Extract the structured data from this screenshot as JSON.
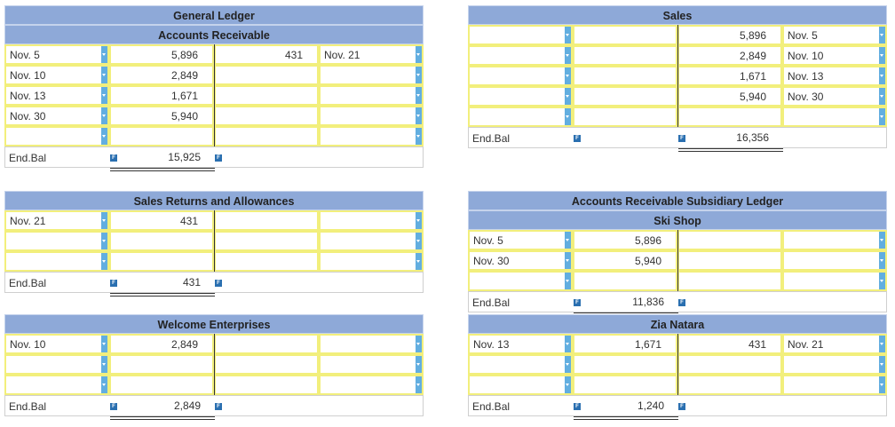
{
  "gl_title": "General Ledger",
  "end_bal_label": "End.Bal",
  "f_icon": "F",
  "accounts": {
    "ar": {
      "title": "Accounts Receivable",
      "rows": [
        {
          "ldate": "Nov. 5",
          "debit": "5,896",
          "credit": "431",
          "rdate": "Nov. 21"
        },
        {
          "ldate": "Nov. 10",
          "debit": "2,849",
          "credit": "",
          "rdate": ""
        },
        {
          "ldate": "Nov. 13",
          "debit": "1,671",
          "credit": "",
          "rdate": ""
        },
        {
          "ldate": "Nov. 30",
          "debit": "5,940",
          "credit": "",
          "rdate": ""
        },
        {
          "ldate": "",
          "debit": "",
          "credit": "",
          "rdate": ""
        }
      ],
      "end_debit": "15,925",
      "end_credit": ""
    },
    "sales": {
      "title": "Sales",
      "rows": [
        {
          "ldate": "",
          "debit": "",
          "credit": "5,896",
          "rdate": "Nov. 5"
        },
        {
          "ldate": "",
          "debit": "",
          "credit": "2,849",
          "rdate": "Nov. 10"
        },
        {
          "ldate": "",
          "debit": "",
          "credit": "1,671",
          "rdate": "Nov. 13"
        },
        {
          "ldate": "",
          "debit": "",
          "credit": "5,940",
          "rdate": "Nov. 30"
        },
        {
          "ldate": "",
          "debit": "",
          "credit": "",
          "rdate": ""
        }
      ],
      "end_debit": "",
      "end_credit": "16,356"
    },
    "sra": {
      "title": "Sales Returns and Allowances",
      "rows": [
        {
          "ldate": "Nov. 21",
          "debit": "431",
          "credit": "",
          "rdate": ""
        },
        {
          "ldate": "",
          "debit": "",
          "credit": "",
          "rdate": ""
        },
        {
          "ldate": "",
          "debit": "",
          "credit": "",
          "rdate": ""
        }
      ],
      "end_debit": "431",
      "end_credit": ""
    },
    "subsidiary_title": "Accounts Receivable Subsidiary Ledger",
    "ski": {
      "title": "Ski Shop",
      "rows": [
        {
          "ldate": "Nov. 5",
          "debit": "5,896",
          "credit": "",
          "rdate": ""
        },
        {
          "ldate": "Nov. 30",
          "debit": "5,940",
          "credit": "",
          "rdate": ""
        },
        {
          "ldate": "",
          "debit": "",
          "credit": "",
          "rdate": ""
        }
      ],
      "end_debit": "11,836",
      "end_credit": ""
    },
    "welcome": {
      "title": "Welcome Enterprises",
      "rows": [
        {
          "ldate": "Nov. 10",
          "debit": "2,849",
          "credit": "",
          "rdate": ""
        },
        {
          "ldate": "",
          "debit": "",
          "credit": "",
          "rdate": ""
        },
        {
          "ldate": "",
          "debit": "",
          "credit": "",
          "rdate": ""
        }
      ],
      "end_debit": "2,849",
      "end_credit": ""
    },
    "zia": {
      "title": "Zia Natara",
      "rows": [
        {
          "ldate": "Nov. 13",
          "debit": "1,671",
          "credit": "431",
          "rdate": "Nov. 21"
        },
        {
          "ldate": "",
          "debit": "",
          "credit": "",
          "rdate": ""
        },
        {
          "ldate": "",
          "debit": "",
          "credit": "",
          "rdate": ""
        }
      ],
      "end_debit": "1,240",
      "end_credit": ""
    }
  },
  "colors": {
    "header": "#8ea9d8",
    "field_border": "#f2ef7c",
    "dropdown": "#62aee0"
  }
}
